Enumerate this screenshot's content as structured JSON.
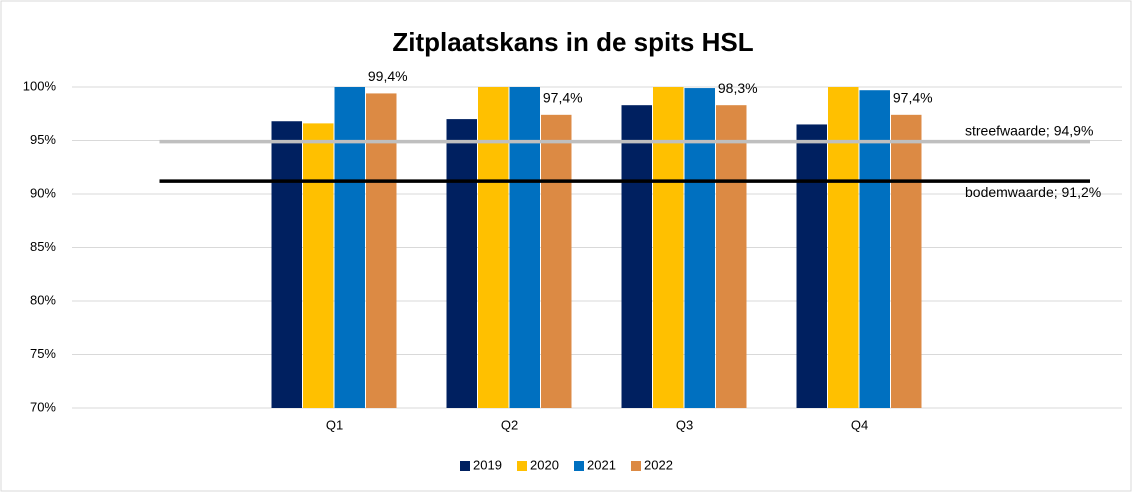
{
  "chart_data": {
    "type": "bar",
    "title": "Zitplaatskans in de spits HSL",
    "categories": [
      null,
      "Q1",
      "Q2",
      "Q3",
      "Q4",
      null
    ],
    "series": [
      {
        "name": "2019",
        "color": "#002060",
        "values": [
          null,
          96.8,
          97.0,
          98.3,
          96.5,
          null
        ]
      },
      {
        "name": "2020",
        "color": "#ffc000",
        "values": [
          null,
          96.6,
          100,
          100,
          100,
          null
        ]
      },
      {
        "name": "2021",
        "color": "#0070c0",
        "values": [
          null,
          100,
          100,
          99.9,
          99.7,
          null
        ]
      },
      {
        "name": "2022",
        "color": "#dc8a44",
        "values": [
          null,
          99.4,
          97.4,
          98.3,
          97.4,
          null
        ],
        "value_labels": [
          null,
          "99,4%",
          "97,4%",
          "98,3%",
          "97,4%",
          null
        ]
      }
    ],
    "reference_lines": [
      {
        "value": 94.9,
        "label": "streefwaarde; 94,9%",
        "color": "#bfbfbf"
      },
      {
        "value": 91.2,
        "label": "bodemwaarde; 91,2%",
        "color": "#000000"
      }
    ],
    "ylim": [
      70,
      100
    ],
    "yticks": [
      {
        "value": 70,
        "label": "70%"
      },
      {
        "value": 75,
        "label": "75%"
      },
      {
        "value": 80,
        "label": "80%"
      },
      {
        "value": 85,
        "label": "85%"
      },
      {
        "value": 90,
        "label": "90%"
      },
      {
        "value": 95,
        "label": "95%"
      },
      {
        "value": 100,
        "label": "100%"
      }
    ],
    "grid": true,
    "legend": "bottom"
  }
}
